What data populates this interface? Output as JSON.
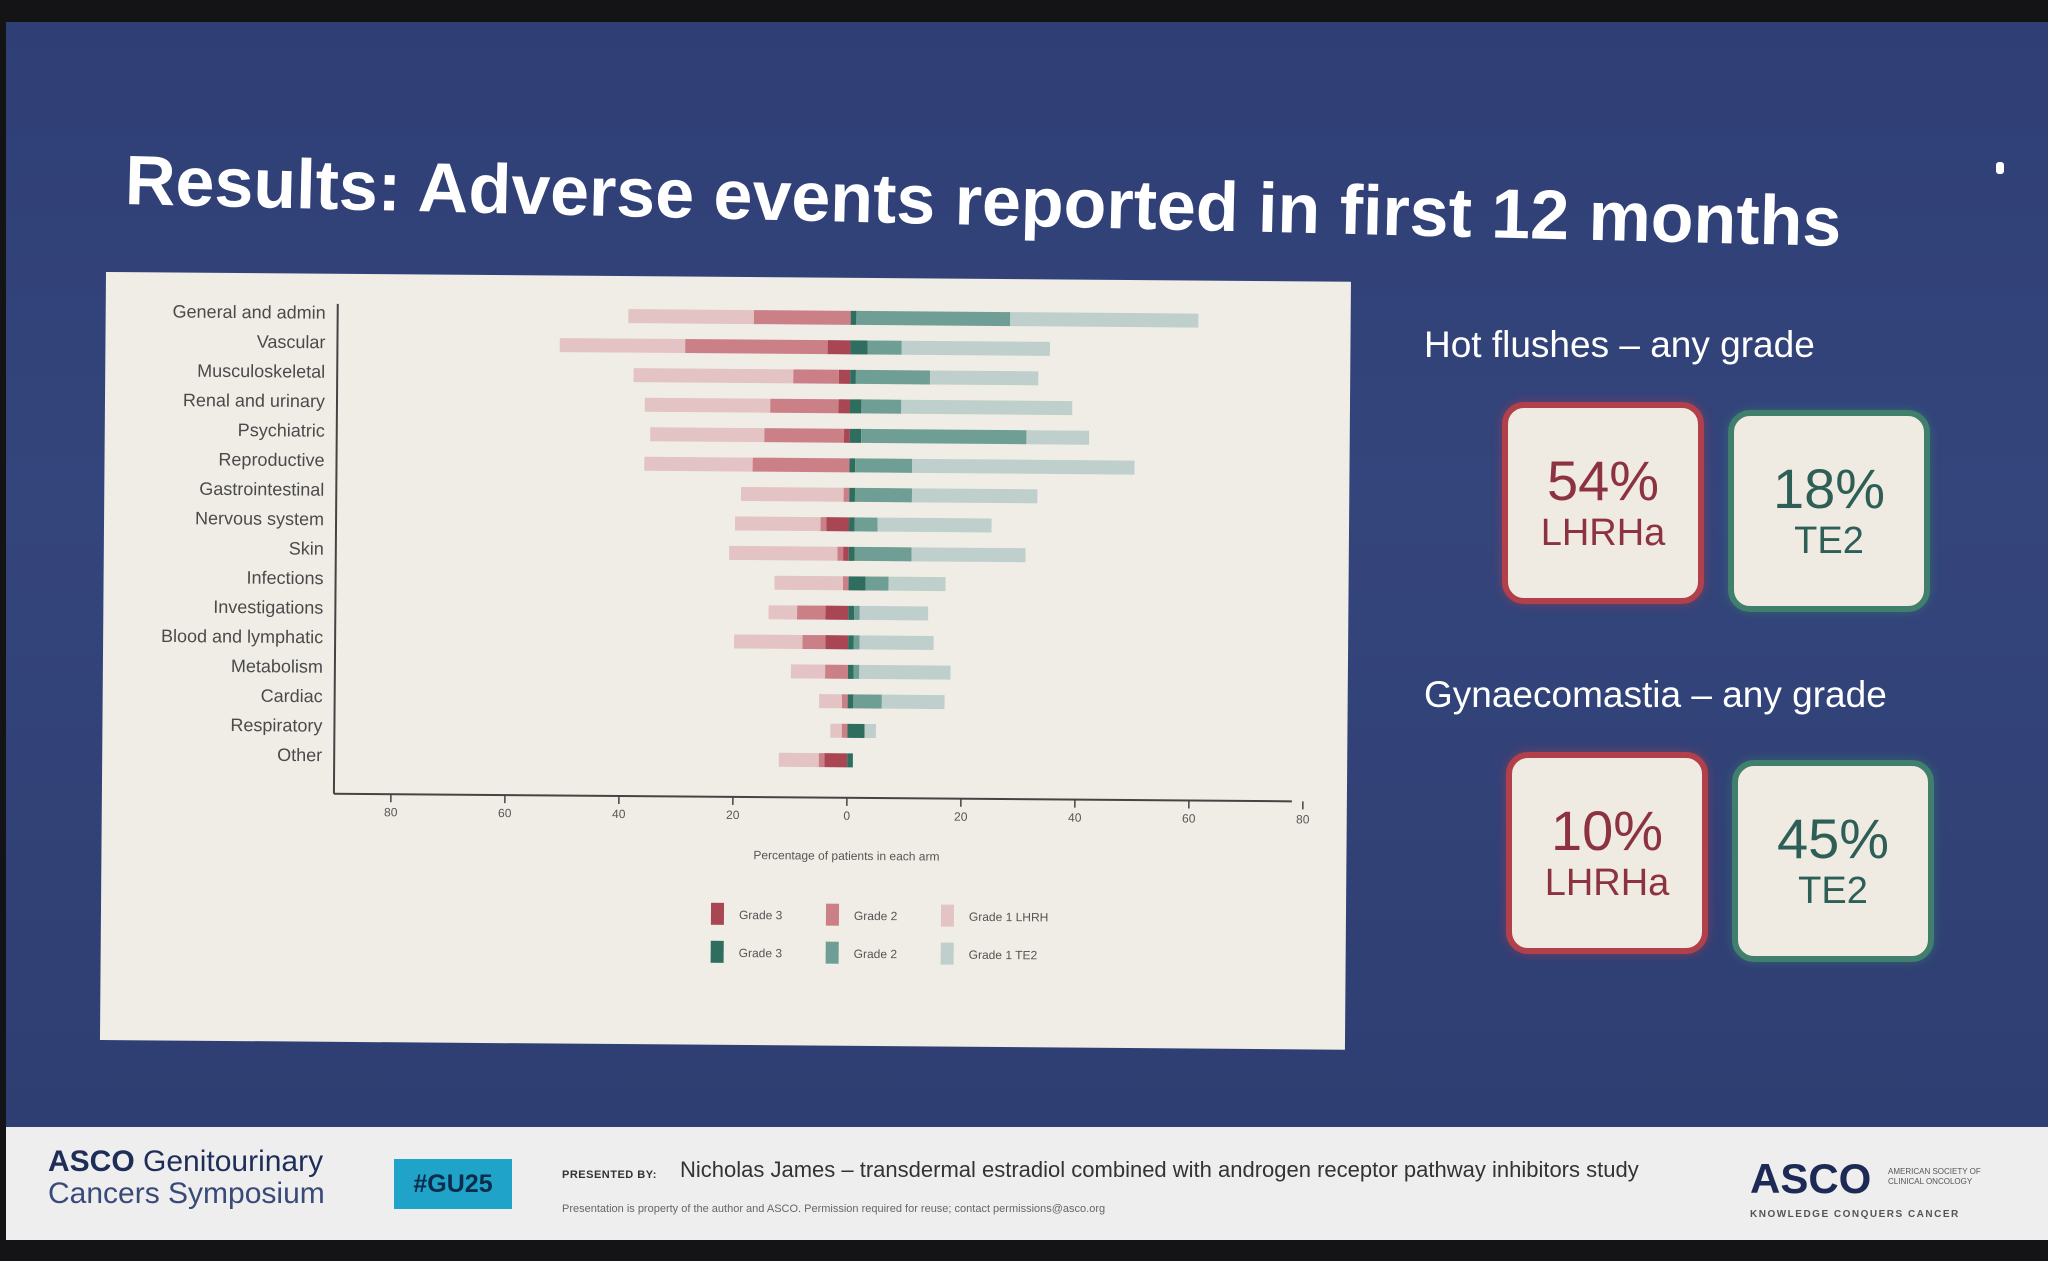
{
  "slide": {
    "title": "Results: Adverse events reported in first 12 months"
  },
  "panels": {
    "hot_flushes": {
      "heading": "Hot flushes – any grade",
      "lhrha": {
        "value": "54%",
        "arm": "LHRHa"
      },
      "te2": {
        "value": "18%",
        "arm": "TE2"
      }
    },
    "gynaecomastia": {
      "heading": "Gynaecomastia – any grade",
      "lhrha": {
        "value": "10%",
        "arm": "LHRHa"
      },
      "te2": {
        "value": "45%",
        "arm": "TE2"
      }
    }
  },
  "footer": {
    "logo_bold": "ASCO",
    "logo_rest": " Genitourinary",
    "logo_line2": "Cancers Symposium",
    "hashtag": "#GU25",
    "presented_label": "PRESENTED BY:",
    "presenter": "Nicholas James – transdermal estradiol combined with androgen receptor pathway inhibitors study",
    "disclaimer": "Presentation is property of the author and ASCO. Permission required for reuse; contact permissions@asco.org",
    "asco": "ASCO",
    "society": "AMERICAN SOCIETY OF CLINICAL ONCOLOGY",
    "tagline": "KNOWLEDGE CONQUERS CANCER"
  },
  "chart_data": {
    "type": "bar",
    "orientation": "horizontal-diverging",
    "xlabel": "Percentage of patients in each arm",
    "xlim": [
      -80,
      80
    ],
    "xticks": [
      -80,
      -60,
      -40,
      -20,
      0,
      20,
      40,
      60,
      80
    ],
    "xtick_labels": [
      "80",
      "60",
      "40",
      "20",
      "0",
      "20",
      "40",
      "60",
      "80"
    ],
    "categories": [
      "General and admin",
      "Vascular",
      "Musculoskeletal",
      "Renal and urinary",
      "Psychiatric",
      "Reproductive",
      "Gastrointestinal",
      "Nervous system",
      "Skin",
      "Infections",
      "Investigations",
      "Blood and lymphatic",
      "Metabolism",
      "Cardiac",
      "Respiratory",
      "Other"
    ],
    "colors": {
      "lhrh_g3": "#a84654",
      "lhrh_g2": "#cb8088",
      "lhrh_g1": "#e3c3c4",
      "te2_g3": "#2f6e5f",
      "te2_g2": "#6f9f94",
      "te2_g1": "#bfcfcb"
    },
    "series": [
      {
        "name": "Grade 3",
        "arm": "LHRH",
        "values": [
          0,
          4,
          2,
          2,
          1,
          0,
          0,
          4,
          1,
          0,
          4,
          4,
          0,
          0,
          0,
          4
        ]
      },
      {
        "name": "Grade 2",
        "arm": "LHRH",
        "values": [
          17,
          25,
          8,
          12,
          14,
          17,
          1,
          1,
          1,
          1,
          5,
          4,
          4,
          1,
          1,
          1
        ]
      },
      {
        "name": "Grade 1 LHRH",
        "arm": "LHRH",
        "values": [
          22,
          22,
          28,
          22,
          20,
          19,
          18,
          15,
          19,
          12,
          5,
          12,
          6,
          4,
          2,
          7
        ]
      },
      {
        "name": "Grade 3",
        "arm": "TE2",
        "values": [
          1,
          3,
          1,
          2,
          2,
          1,
          1,
          1,
          1,
          3,
          1,
          1,
          1,
          1,
          3,
          1
        ]
      },
      {
        "name": "Grade 2",
        "arm": "TE2",
        "values": [
          27,
          6,
          13,
          7,
          29,
          10,
          10,
          4,
          10,
          4,
          1,
          1,
          1,
          5,
          0,
          0
        ]
      },
      {
        "name": "Grade 1 TE2",
        "arm": "TE2",
        "values": [
          33,
          26,
          19,
          30,
          11,
          39,
          22,
          20,
          20,
          10,
          12,
          13,
          16,
          11,
          2,
          0
        ]
      }
    ],
    "legend": [
      {
        "label": "Grade 3",
        "color": "#a84654"
      },
      {
        "label": "Grade 2",
        "color": "#cb8088"
      },
      {
        "label": "Grade 1 LHRH",
        "color": "#e3c3c4"
      },
      {
        "label": "Grade 3",
        "color": "#2f6e5f"
      },
      {
        "label": "Grade 2",
        "color": "#6f9f94"
      },
      {
        "label": "Grade 1 TE2",
        "color": "#bfcfcb"
      }
    ],
    "legend_position": "bottom"
  }
}
